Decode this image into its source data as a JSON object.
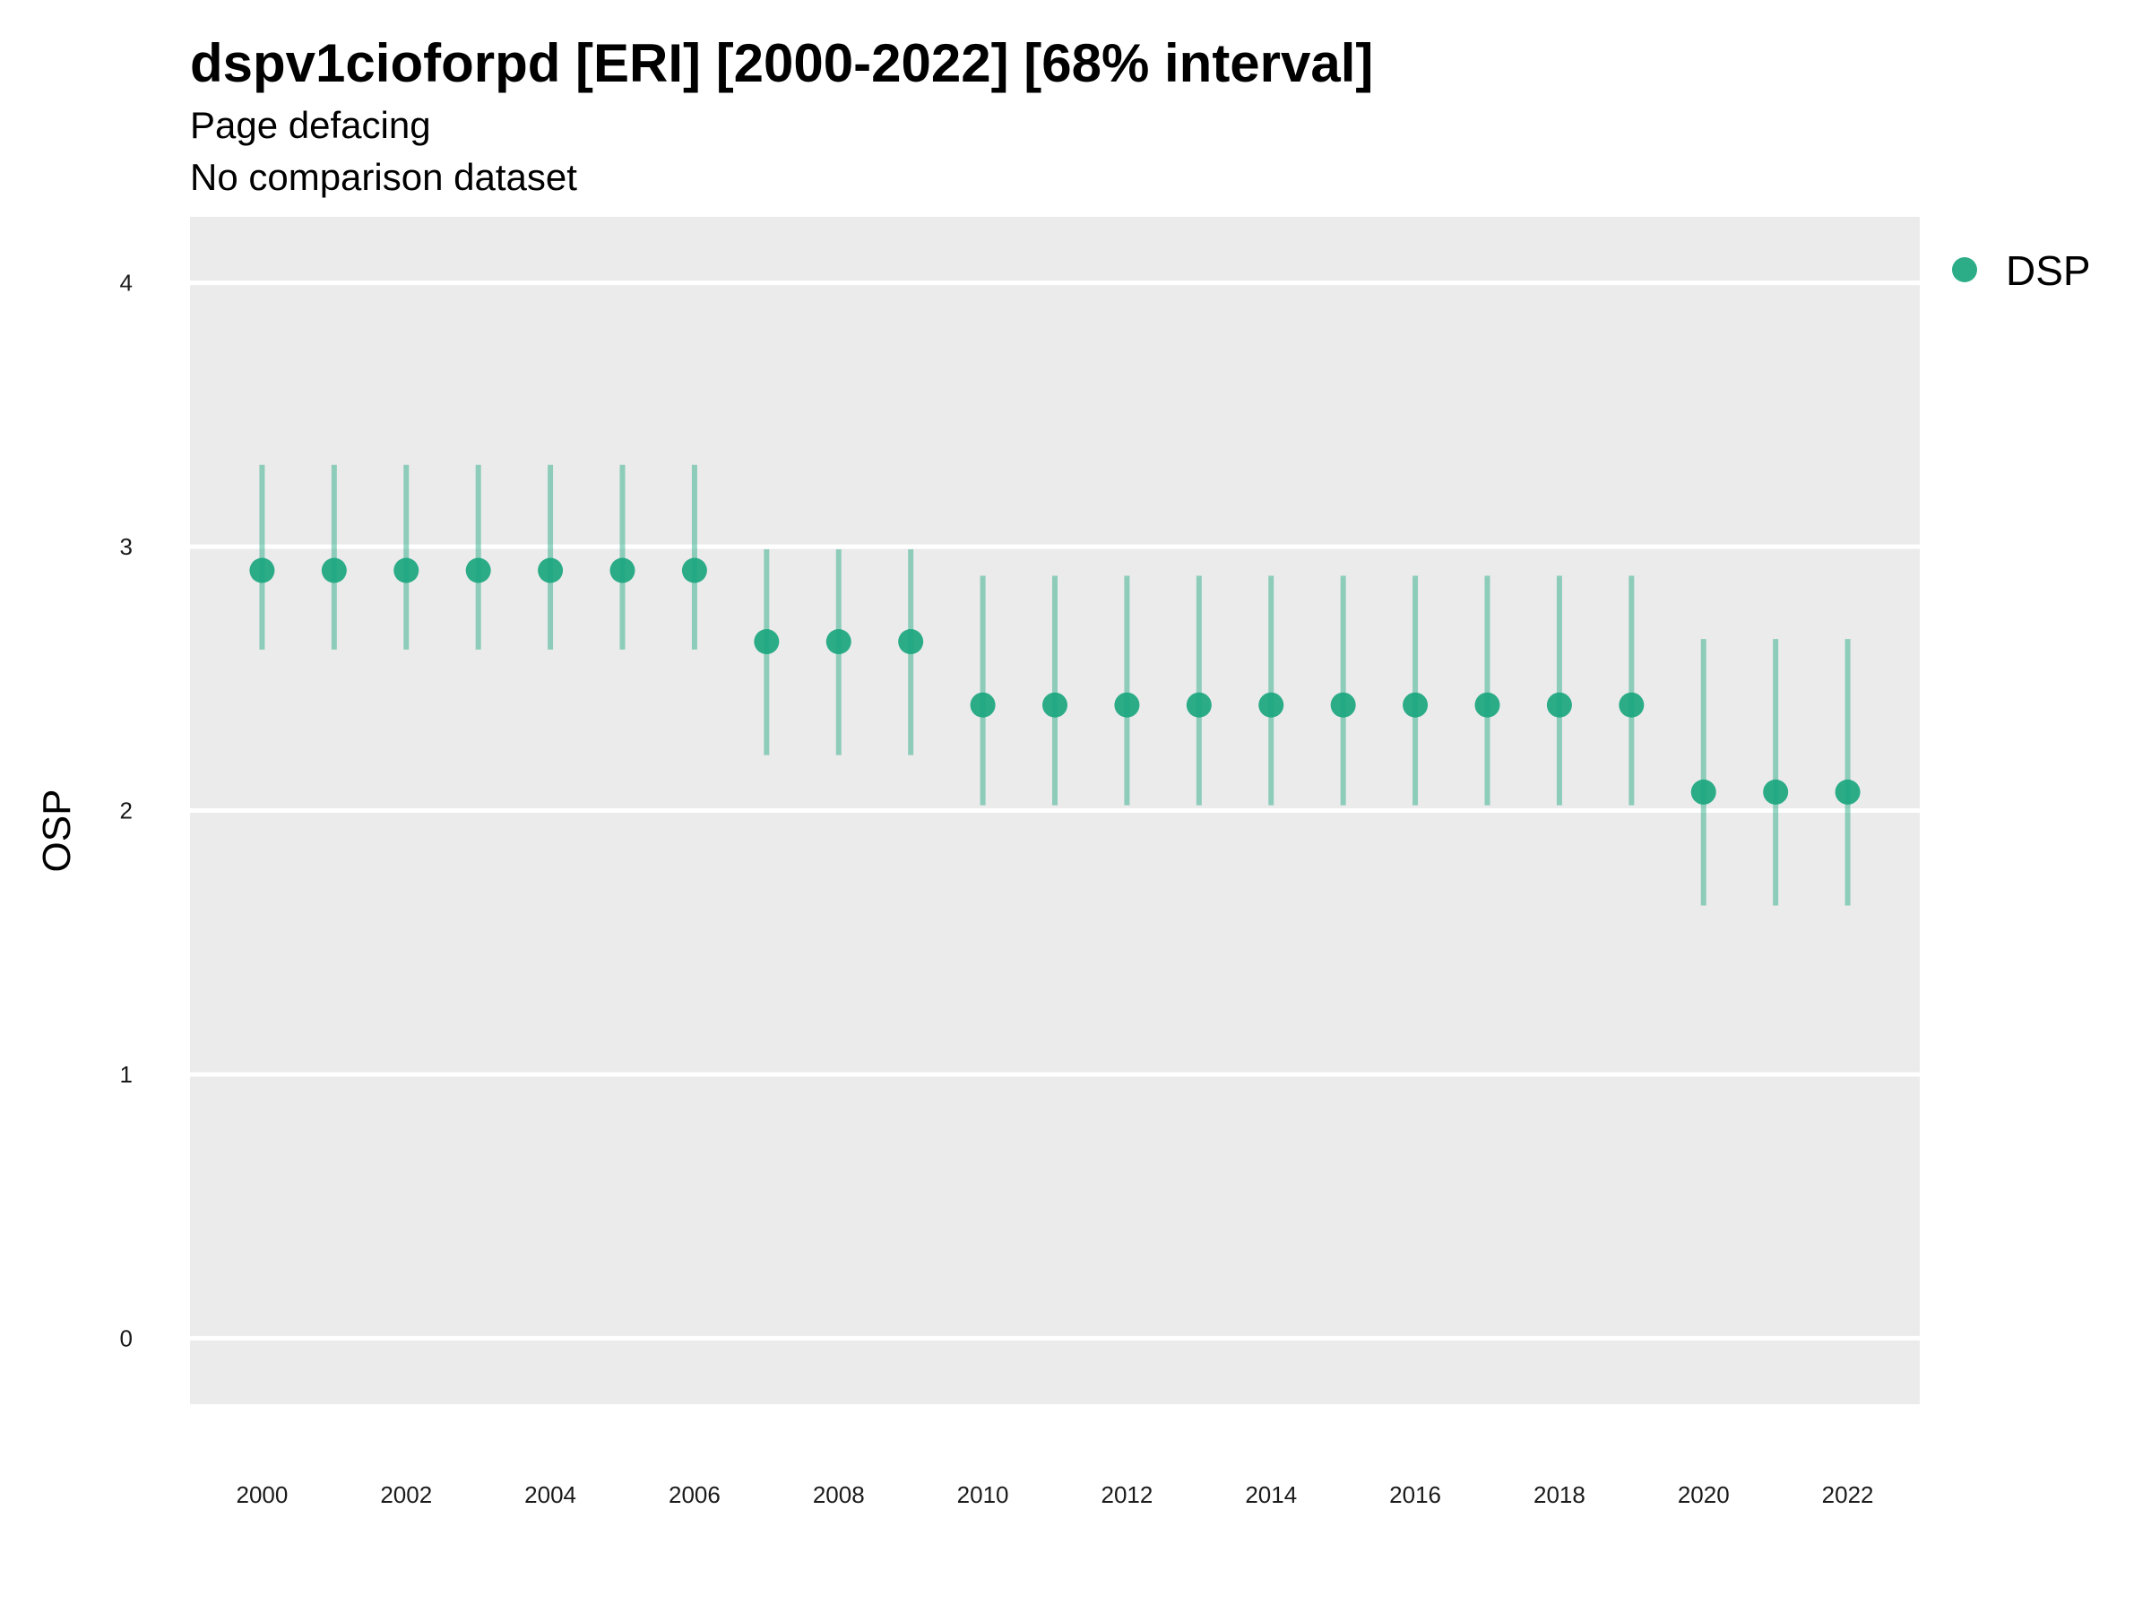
{
  "chart_data": {
    "type": "scatter",
    "title": "dspv1cioforpd [ERI] [2000-2022] [68% interval]",
    "subtitle": [
      "Page defacing",
      "No comparison dataset"
    ],
    "xlabel": "",
    "ylabel": "OSP",
    "ylim": [
      -0.25,
      4.25
    ],
    "yticks": [
      0,
      1,
      2,
      3,
      4
    ],
    "xlim": [
      1999,
      2023
    ],
    "xticks": [
      2000,
      2002,
      2004,
      2006,
      2008,
      2010,
      2012,
      2014,
      2016,
      2018,
      2020,
      2022
    ],
    "grid": true,
    "legend_position": "right",
    "series": [
      {
        "name": "DSP",
        "color": "#1aa67e",
        "x": [
          2000,
          2001,
          2002,
          2003,
          2004,
          2005,
          2006,
          2007,
          2008,
          2009,
          2010,
          2011,
          2012,
          2013,
          2014,
          2015,
          2016,
          2017,
          2018,
          2019,
          2020,
          2021,
          2022
        ],
        "y": [
          2.91,
          2.91,
          2.91,
          2.91,
          2.91,
          2.91,
          2.91,
          2.64,
          2.64,
          2.64,
          2.4,
          2.4,
          2.4,
          2.4,
          2.4,
          2.4,
          2.4,
          2.4,
          2.4,
          2.4,
          2.07,
          2.07,
          2.07
        ],
        "lower": [
          2.61,
          2.61,
          2.61,
          2.61,
          2.61,
          2.61,
          2.61,
          2.21,
          2.21,
          2.21,
          2.02,
          2.02,
          2.02,
          2.02,
          2.02,
          2.02,
          2.02,
          2.02,
          2.02,
          2.02,
          1.64,
          1.64,
          1.64
        ],
        "upper": [
          3.31,
          3.31,
          3.31,
          3.31,
          3.31,
          3.31,
          3.31,
          2.99,
          2.99,
          2.99,
          2.89,
          2.89,
          2.89,
          2.89,
          2.89,
          2.89,
          2.89,
          2.89,
          2.89,
          2.89,
          2.65,
          2.65,
          2.65
        ]
      }
    ]
  }
}
